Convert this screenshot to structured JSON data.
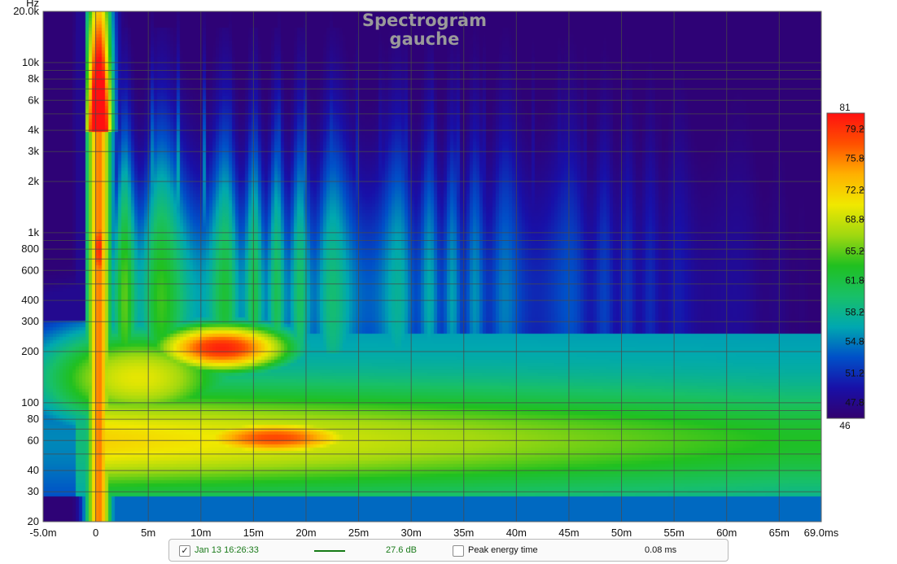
{
  "chart_data": {
    "type": "heatmap",
    "title": "Spectrogram",
    "subtitle": "gauche",
    "x_unit": "ms",
    "x_range": [
      -5.0,
      69.0
    ],
    "x_ticks": [
      {
        "v": -5,
        "label": "-5.0m"
      },
      {
        "v": 0,
        "label": "0"
      },
      {
        "v": 5,
        "label": "5m"
      },
      {
        "v": 10,
        "label": "10m"
      },
      {
        "v": 15,
        "label": "15m"
      },
      {
        "v": 20,
        "label": "20m"
      },
      {
        "v": 25,
        "label": "25m"
      },
      {
        "v": 30,
        "label": "30m"
      },
      {
        "v": 35,
        "label": "35m"
      },
      {
        "v": 40,
        "label": "40m"
      },
      {
        "v": 45,
        "label": "45m"
      },
      {
        "v": 50,
        "label": "50m"
      },
      {
        "v": 55,
        "label": "55m"
      },
      {
        "v": 60,
        "label": "60m"
      },
      {
        "v": 65,
        "label": "65m"
      },
      {
        "v": 69,
        "label": "69.0ms"
      }
    ],
    "y_unit": "Hz",
    "y_scale": "log",
    "y_range": [
      20,
      20000
    ],
    "y_ticks": [
      {
        "v": 20,
        "label": "20"
      },
      {
        "v": 30,
        "label": "30"
      },
      {
        "v": 40,
        "label": "40"
      },
      {
        "v": 60,
        "label": "60"
      },
      {
        "v": 80,
        "label": "80"
      },
      {
        "v": 100,
        "label": "100"
      },
      {
        "v": 200,
        "label": "200"
      },
      {
        "v": 300,
        "label": "300"
      },
      {
        "v": 400,
        "label": "400"
      },
      {
        "v": 600,
        "label": "600"
      },
      {
        "v": 800,
        "label": "800"
      },
      {
        "v": 1000,
        "label": "1k"
      },
      {
        "v": 2000,
        "label": "2k"
      },
      {
        "v": 3000,
        "label": "3k"
      },
      {
        "v": 4000,
        "label": "4k"
      },
      {
        "v": 6000,
        "label": "6k"
      },
      {
        "v": 8000,
        "label": "8k"
      },
      {
        "v": 10000,
        "label": "10k"
      },
      {
        "v": 20000,
        "label": "20.0k"
      }
    ],
    "y_minor_ticks": [
      50,
      70,
      90,
      500,
      700,
      900,
      5000,
      7000,
      9000
    ],
    "grid": true,
    "colorbar": {
      "unit": "dB",
      "range": [
        46,
        81
      ],
      "labels": [
        81,
        79.2,
        75.8,
        72.2,
        68.8,
        65.2,
        61.8,
        58.2,
        54.8,
        51.2,
        47.8,
        46
      ],
      "colors": [
        "#32006e",
        "#1810a8",
        "#0050c8",
        "#00a8b0",
        "#18c068",
        "#20c020",
        "#a0d810",
        "#f0e800",
        "#ffb000",
        "#ff5000",
        "#ff1010"
      ]
    },
    "energy_regions": [
      {
        "desc": "direct sound vertical streak",
        "t": [
          0.0,
          1.2
        ],
        "f": [
          300,
          20000
        ],
        "db": 76
      },
      {
        "desc": "direct sound core",
        "t": [
          -0.3,
          1.0
        ],
        "f": [
          400,
          2500
        ],
        "db": 79
      },
      {
        "desc": "low-mid hot zone",
        "t": [
          6,
          19
        ],
        "f": [
          140,
          300
        ],
        "db": 80
      },
      {
        "desc": "bass hot zone",
        "t": [
          9,
          27
        ],
        "f": [
          48,
          80
        ],
        "db": 78
      },
      {
        "desc": "bass sustain band",
        "t": [
          30,
          69
        ],
        "f": [
          35,
          80
        ],
        "db": 66
      }
    ]
  },
  "status": {
    "trace_checked": "✓",
    "trace_label": "Jan 13 16:26:33",
    "trace_color": "#157a15",
    "level": "27.6 dB",
    "peak_checked": "",
    "peak_label": "Peak energy time",
    "peak_value": "0.08 ms"
  }
}
